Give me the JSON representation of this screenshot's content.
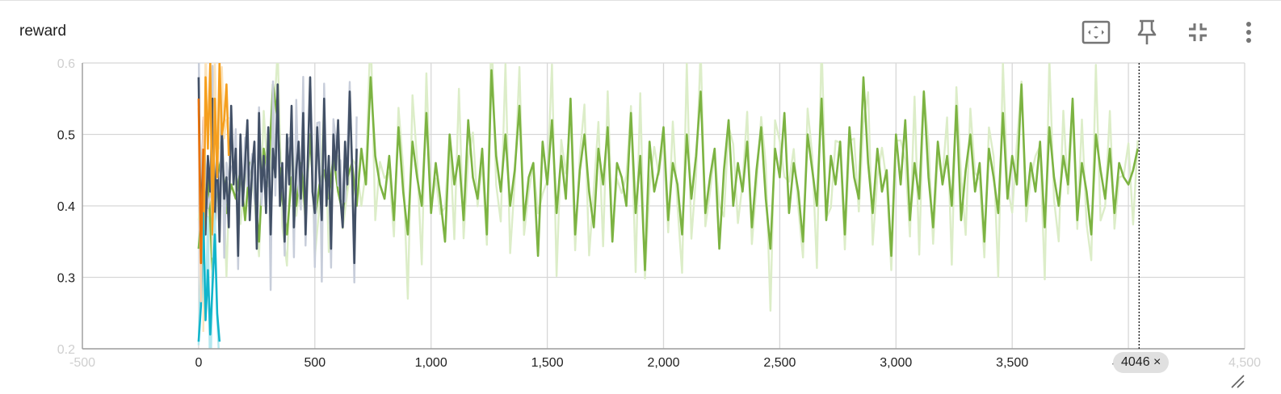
{
  "card": {
    "title": "reward"
  },
  "toolbar": {
    "buttons": [
      {
        "name": "fit-domain-button",
        "icon": "fit-to-data-icon"
      },
      {
        "name": "pin-button",
        "icon": "pin-icon"
      },
      {
        "name": "collapse-button",
        "icon": "exit-fullscreen-icon"
      },
      {
        "name": "more-options-button",
        "icon": "more-vert-icon"
      }
    ]
  },
  "step_chip": {
    "label": "4046",
    "close_glyph": "×"
  },
  "chart_data": {
    "type": "line",
    "title": "reward",
    "xlabel": "",
    "ylabel": "",
    "xlim": [
      -500,
      4500
    ],
    "ylim": [
      0.2,
      0.6
    ],
    "x_ticks": [
      {
        "value": -500,
        "label": "-500",
        "faded": true
      },
      {
        "value": 0,
        "label": "0"
      },
      {
        "value": 500,
        "label": "500"
      },
      {
        "value": 1000,
        "label": "1,000"
      },
      {
        "value": 1500,
        "label": "1,500"
      },
      {
        "value": 2000,
        "label": "2,000"
      },
      {
        "value": 2500,
        "label": "2,500"
      },
      {
        "value": 3000,
        "label": "3,000"
      },
      {
        "value": 3500,
        "label": "3,500"
      },
      {
        "value": 4000,
        "label": "4,000"
      },
      {
        "value": 4500,
        "label": "4,500",
        "faded": true
      }
    ],
    "y_ticks": [
      {
        "value": 0.2,
        "label": "0.2",
        "faded": true
      },
      {
        "value": 0.3,
        "label": "0.3"
      },
      {
        "value": 0.4,
        "label": "0.4"
      },
      {
        "value": 0.5,
        "label": "0.5"
      },
      {
        "value": 0.6,
        "label": "0.6",
        "faded": true
      }
    ],
    "grid": true,
    "hover_step": 4046,
    "series": [
      {
        "color": "#7cb342",
        "raw_color": "#dcedc8",
        "x_start": 0,
        "x_step": 20,
        "values": [
          0.34,
          0.42,
          0.45,
          0.31,
          0.44,
          0.47,
          0.39,
          0.43,
          0.41,
          0.45,
          0.38,
          0.46,
          0.43,
          0.35,
          0.48,
          0.44,
          0.57,
          0.52,
          0.41,
          0.36,
          0.44,
          0.4,
          0.46,
          0.39,
          0.5,
          0.38,
          0.43,
          0.45,
          0.41,
          0.47,
          0.42,
          0.39,
          0.44,
          0.46,
          0.4,
          0.48,
          0.43,
          0.58,
          0.47,
          0.43,
          0.41,
          0.47,
          0.38,
          0.51,
          0.42,
          0.36,
          0.49,
          0.44,
          0.4,
          0.53,
          0.39,
          0.46,
          0.41,
          0.35,
          0.5,
          0.43,
          0.47,
          0.38,
          0.52,
          0.44,
          0.41,
          0.48,
          0.36,
          0.59,
          0.47,
          0.42,
          0.5,
          0.4,
          0.45,
          0.54,
          0.38,
          0.44,
          0.46,
          0.33,
          0.49,
          0.43,
          0.52,
          0.39,
          0.47,
          0.41,
          0.55,
          0.36,
          0.45,
          0.5,
          0.42,
          0.37,
          0.48,
          0.43,
          0.51,
          0.35,
          0.46,
          0.44,
          0.4,
          0.53,
          0.39,
          0.47,
          0.31,
          0.49,
          0.42,
          0.45,
          0.51,
          0.38,
          0.46,
          0.43,
          0.36,
          0.5,
          0.41,
          0.47,
          0.56,
          0.39,
          0.44,
          0.48,
          0.34,
          0.45,
          0.52,
          0.4,
          0.46,
          0.42,
          0.49,
          0.37,
          0.45,
          0.51,
          0.41,
          0.34,
          0.48,
          0.44,
          0.53,
          0.39,
          0.46,
          0.42,
          0.35,
          0.5,
          0.45,
          0.4,
          0.55,
          0.38,
          0.47,
          0.43,
          0.49,
          0.36,
          0.51,
          0.44,
          0.41,
          0.58,
          0.46,
          0.39,
          0.48,
          0.42,
          0.45,
          0.33,
          0.5,
          0.43,
          0.52,
          0.38,
          0.46,
          0.41,
          0.56,
          0.44,
          0.37,
          0.49,
          0.43,
          0.47,
          0.4,
          0.54,
          0.38,
          0.45,
          0.5,
          0.42,
          0.46,
          0.35,
          0.48,
          0.44,
          0.39,
          0.53,
          0.41,
          0.47,
          0.43,
          0.57,
          0.4,
          0.46,
          0.42,
          0.49,
          0.37,
          0.51,
          0.44,
          0.4,
          0.47,
          0.43,
          0.55,
          0.38,
          0.46,
          0.42,
          0.36,
          0.5,
          0.45,
          0.41,
          0.48,
          0.39,
          0.46,
          0.44,
          0.43,
          0.45,
          0.48
        ]
      },
      {
        "color": "#425066",
        "raw_color": "#c7cdda",
        "x_start": 0,
        "x_step": 10,
        "values": [
          0.58,
          0.33,
          0.52,
          0.36,
          0.47,
          0.42,
          0.55,
          0.38,
          0.49,
          0.35,
          0.51,
          0.41,
          0.44,
          0.37,
          0.54,
          0.43,
          0.48,
          0.33,
          0.5,
          0.4,
          0.46,
          0.52,
          0.38,
          0.45,
          0.49,
          0.34,
          0.53,
          0.42,
          0.47,
          0.39,
          0.51,
          0.36,
          0.48,
          0.44,
          0.57,
          0.4,
          0.46,
          0.35,
          0.5,
          0.43,
          0.54,
          0.37,
          0.45,
          0.49,
          0.41,
          0.53,
          0.36,
          0.47,
          0.58,
          0.42,
          0.39,
          0.51,
          0.44,
          0.38,
          0.55,
          0.4,
          0.47,
          0.34,
          0.5,
          0.45,
          0.52,
          0.41,
          0.37,
          0.49,
          0.43,
          0.56,
          0.46,
          0.32,
          0.48
        ]
      },
      {
        "color": "#f59f1f",
        "raw_color": "#fbe3bb",
        "x_start": 20,
        "x_step": 10,
        "values": [
          0.3,
          0.58,
          0.48,
          0.6,
          0.36,
          0.55,
          0.44,
          0.6,
          0.5,
          0.52,
          0.57,
          0.47
        ]
      },
      {
        "color": "#12b5cb",
        "raw_color": "#b3e8ef",
        "x_start": 0,
        "x_step": 10,
        "values": [
          0.21,
          0.26,
          0.39,
          0.24,
          0.31,
          0.22,
          0.29,
          0.36,
          0.25,
          0.21
        ]
      },
      {
        "color": "#e8710a",
        "raw_color": "#fbd3b3",
        "x_start": 0,
        "x_step": 10,
        "values": [
          0.55,
          0.32,
          0.48
        ]
      }
    ]
  }
}
